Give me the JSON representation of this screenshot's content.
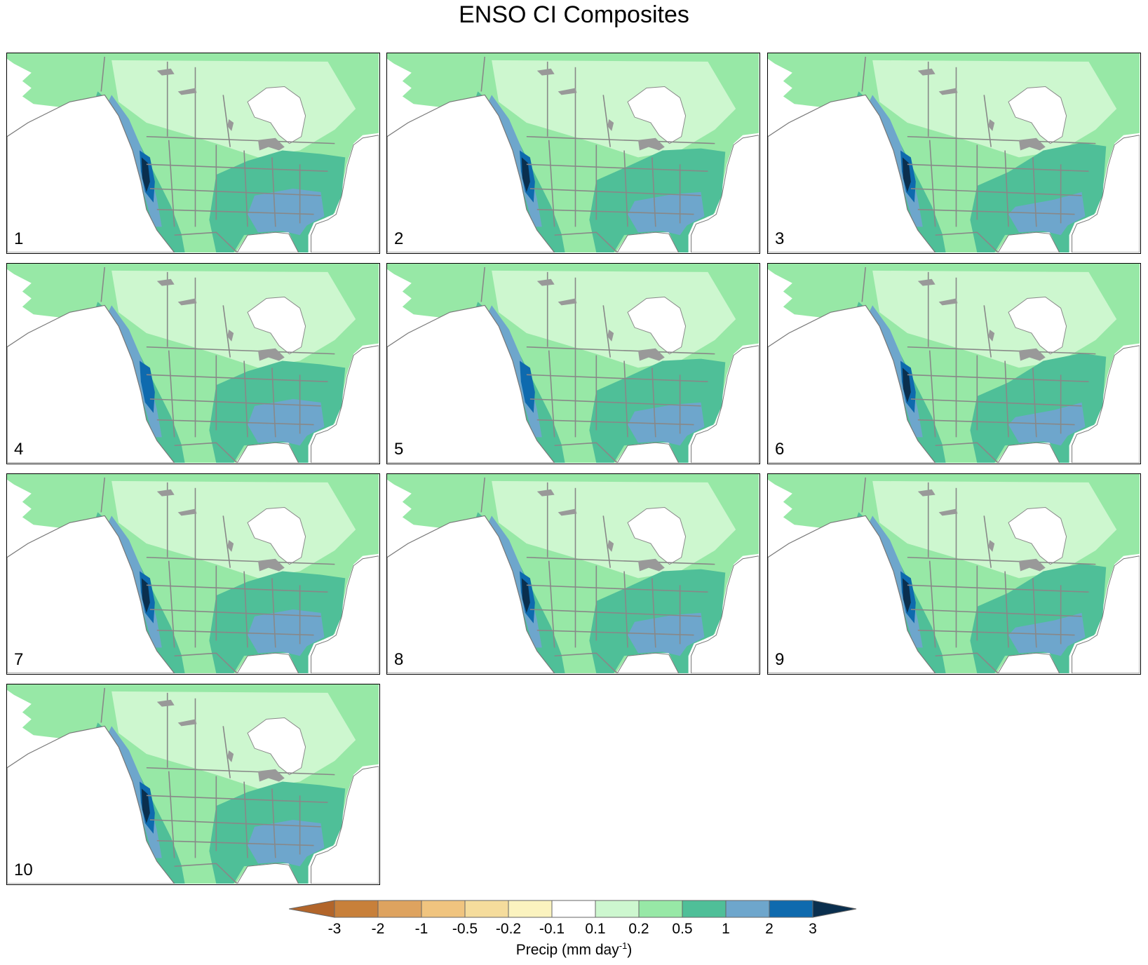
{
  "title": "ENSO CI Composites",
  "panels": [
    {
      "label": "1"
    },
    {
      "label": "2"
    },
    {
      "label": "3"
    },
    {
      "label": "4"
    },
    {
      "label": "5"
    },
    {
      "label": "6"
    },
    {
      "label": "7"
    },
    {
      "label": "8"
    },
    {
      "label": "9"
    },
    {
      "label": "10"
    }
  ],
  "colorbar": {
    "ticks": [
      "-3",
      "-2",
      "-1",
      "-0.5",
      "-0.2",
      "-0.1",
      "0.1",
      "0.2",
      "0.5",
      "1",
      "2",
      "3"
    ],
    "colors": [
      "#c8803a",
      "#dea35f",
      "#f0c47f",
      "#f5dc9c",
      "#fbf3bf",
      "#ffffff",
      "#cdf7cf",
      "#97e8a6",
      "#4fbf98",
      "#6ea6cc",
      "#0e6aae"
    ],
    "low_extend_color": "#b2652a",
    "high_extend_color": "#0a2f4e",
    "caption_prefix": "Precip (mm day",
    "caption_exp": "-1",
    "caption_suffix": ")"
  }
}
